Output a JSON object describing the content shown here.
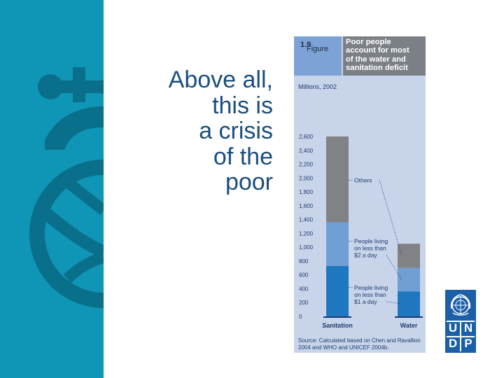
{
  "slide": {
    "headline_lines": [
      "Above all,",
      "this is",
      "a crisis",
      "of the",
      "poor"
    ]
  },
  "figure": {
    "label_prefix": "Figure",
    "label_number": "1.9",
    "title_lines": [
      "Poor people",
      "account for most",
      "of the water and",
      "sanitation deficit"
    ],
    "source_lines": [
      "Source: Calculated based on Chen and Ravallion",
      "2004 and WHO and UNICEF 2004b."
    ]
  },
  "logo": {
    "letters": [
      "U",
      "N",
      "D",
      "P"
    ]
  },
  "colors": {
    "sidebar": "#0f95b5",
    "sidebar_motif": "#0a6f8a",
    "headline": "#1a4e7e",
    "others": "#808286",
    "under_2": "#6f9fd4",
    "under_1": "#1f78bf",
    "undp_blue": "#1a5fa8"
  },
  "chart_data": {
    "type": "bar",
    "stacked": true,
    "ylabel": "Millions, 2002",
    "ylim": [
      0,
      2600
    ],
    "yticks": [
      0,
      200,
      400,
      600,
      800,
      1000,
      1200,
      1400,
      1600,
      1800,
      2000,
      2200,
      2400,
      2600
    ],
    "ytick_labels": [
      "0",
      "200",
      "400",
      "600",
      "800",
      "1,000",
      "1,200",
      "1,400",
      "1,600",
      "1,800",
      "2,000",
      "2,200",
      "2,400",
      "2,600"
    ],
    "categories": [
      "Sanitation",
      "Water"
    ],
    "series": [
      {
        "key": "under_1",
        "values": [
          730,
          360
        ]
      },
      {
        "key": "under_2",
        "values": [
          630,
          340
        ]
      },
      {
        "key": "others",
        "values": [
          1240,
          350
        ]
      }
    ],
    "annotations": [
      {
        "series": "others",
        "lines": [
          "Others"
        ]
      },
      {
        "series": "under_2",
        "lines": [
          "People living",
          "on less than",
          "$2 a day"
        ]
      },
      {
        "series": "under_1",
        "lines": [
          "People living",
          "on less than",
          "$1 a day"
        ]
      }
    ]
  }
}
